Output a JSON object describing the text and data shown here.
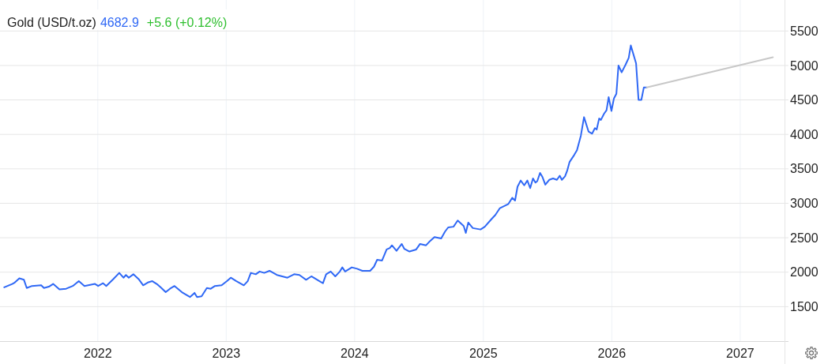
{
  "chart_data": {
    "type": "line",
    "title": "Gold (USD/t.oz)",
    "annotations": [
      "4682.9",
      "+5.6 (+0.12%)"
    ],
    "xlim": [
      "2021-03-29",
      "2027-05-07"
    ],
    "xticks": [
      {
        "value": "2022-01-01",
        "label": "2022"
      },
      {
        "value": "2023-01-01",
        "label": "2023"
      },
      {
        "value": "2024-01-01",
        "label": "2024"
      },
      {
        "value": "2025-01-01",
        "label": "2025"
      },
      {
        "value": "2026-01-01",
        "label": "2026"
      },
      {
        "value": "2027-01-01",
        "label": "2027"
      }
    ],
    "ylim": [
      1000,
      5950
    ],
    "yticks": [
      1500,
      2000,
      2500,
      3000,
      3500,
      4000,
      4500,
      5000,
      5500
    ],
    "grid": true,
    "series": [
      {
        "color": "#2f68f5",
        "x": [
          "2021-04-10",
          "2021-05-03",
          "2021-05-10",
          "2021-05-23",
          "2021-06-05",
          "2021-06-13",
          "2021-06-28",
          "2021-07-24",
          "2021-08-01",
          "2021-08-15",
          "2021-08-27",
          "2021-09-14",
          "2021-10-03",
          "2021-10-22",
          "2021-11-08",
          "2021-11-24",
          "2021-12-24",
          "2022-01-02",
          "2022-01-16",
          "2022-01-25",
          "2022-02-14",
          "2022-03-03",
          "2022-03-15",
          "2022-03-22",
          "2022-03-30",
          "2022-04-12",
          "2022-04-27",
          "2022-05-10",
          "2022-05-23",
          "2022-06-05",
          "2022-06-20",
          "2022-06-29",
          "2022-07-13",
          "2022-07-25",
          "2022-08-07",
          "2022-08-28",
          "2022-09-20",
          "2022-10-03",
          "2022-10-10",
          "2022-10-23",
          "2022-11-07",
          "2022-11-18",
          "2022-11-30",
          "2022-12-19",
          "2023-01-03",
          "2023-01-14",
          "2023-01-30",
          "2023-02-20",
          "2023-03-03",
          "2023-03-12",
          "2023-03-26",
          "2023-04-06",
          "2023-04-19",
          "2023-05-04",
          "2023-05-25",
          "2023-06-24",
          "2023-07-13",
          "2023-07-28",
          "2023-08-16",
          "2023-08-31",
          "2023-09-26",
          "2023-10-03",
          "2023-10-12",
          "2023-10-25",
          "2023-11-07",
          "2023-11-20",
          "2023-11-27",
          "2023-12-05",
          "2023-12-24",
          "2024-01-08",
          "2024-01-23",
          "2024-02-14",
          "2024-02-25",
          "2024-03-05",
          "2024-03-19",
          "2024-04-01",
          "2024-04-10",
          "2024-04-16",
          "2024-04-29",
          "2024-05-14",
          "2024-05-21",
          "2024-06-05",
          "2024-06-24",
          "2024-07-05",
          "2024-07-22",
          "2024-07-31",
          "2024-08-15",
          "2024-09-03",
          "2024-09-14",
          "2024-09-23",
          "2024-10-08",
          "2024-10-20",
          "2024-11-06",
          "2024-11-12",
          "2024-11-19",
          "2024-12-02",
          "2024-12-24",
          "2025-01-05",
          "2025-01-24",
          "2025-02-04",
          "2025-02-17",
          "2025-03-13",
          "2025-03-24",
          "2025-04-01",
          "2025-04-08",
          "2025-04-17",
          "2025-04-27",
          "2025-05-06",
          "2025-05-14",
          "2025-05-22",
          "2025-05-29",
          "2025-06-03",
          "2025-06-11",
          "2025-06-18",
          "2025-06-26",
          "2025-07-07",
          "2025-07-18",
          "2025-07-29",
          "2025-08-06",
          "2025-08-12",
          "2025-08-21",
          "2025-08-27",
          "2025-09-03",
          "2025-09-16",
          "2025-09-24",
          "2025-10-05",
          "2025-10-14",
          "2025-10-27",
          "2025-11-06",
          "2025-11-14",
          "2025-11-19",
          "2025-11-26",
          "2025-12-01",
          "2025-12-10",
          "2025-12-17",
          "2025-12-23",
          "2025-12-31",
          "2026-01-07",
          "2026-01-14",
          "2026-01-20",
          "2026-01-29",
          "2026-02-09",
          "2026-02-18",
          "2026-02-24",
          "2026-03-11",
          "2026-03-18",
          "2026-03-26",
          "2026-04-02",
          "2026-04-10"
        ],
        "values": [
          1780,
          1830,
          1850,
          1910,
          1890,
          1770,
          1800,
          1810,
          1770,
          1790,
          1830,
          1750,
          1760,
          1800,
          1870,
          1800,
          1830,
          1800,
          1840,
          1800,
          1900,
          1990,
          1920,
          1960,
          1920,
          1970,
          1900,
          1810,
          1850,
          1870,
          1820,
          1780,
          1710,
          1760,
          1800,
          1710,
          1640,
          1700,
          1640,
          1650,
          1770,
          1760,
          1800,
          1810,
          1870,
          1920,
          1870,
          1810,
          1870,
          1990,
          1970,
          2010,
          1990,
          2020,
          1960,
          1920,
          1970,
          1960,
          1890,
          1940,
          1860,
          1840,
          1970,
          2010,
          1940,
          2010,
          2070,
          2010,
          2070,
          2050,
          2020,
          2020,
          2080,
          2180,
          2170,
          2330,
          2350,
          2390,
          2310,
          2410,
          2340,
          2300,
          2330,
          2410,
          2390,
          2440,
          2510,
          2490,
          2590,
          2650,
          2660,
          2750,
          2670,
          2570,
          2720,
          2640,
          2620,
          2660,
          2770,
          2830,
          2930,
          2990,
          3080,
          3040,
          3240,
          3330,
          3260,
          3330,
          3220,
          3360,
          3300,
          3320,
          3440,
          3380,
          3270,
          3340,
          3360,
          3340,
          3400,
          3340,
          3390,
          3470,
          3600,
          3700,
          3770,
          3980,
          4250,
          4040,
          4010,
          4090,
          4070,
          4230,
          4210,
          4300,
          4350,
          4540,
          4340,
          4520,
          4590,
          5000,
          4900,
          5010,
          5110,
          5290,
          5030,
          4500,
          4500,
          4680,
          4680
        ]
      },
      {
        "color": "#c8c8c8",
        "x": [
          "2026-04-10",
          "2027-04-04"
        ],
        "values": [
          4680,
          5120
        ]
      }
    ]
  }
}
